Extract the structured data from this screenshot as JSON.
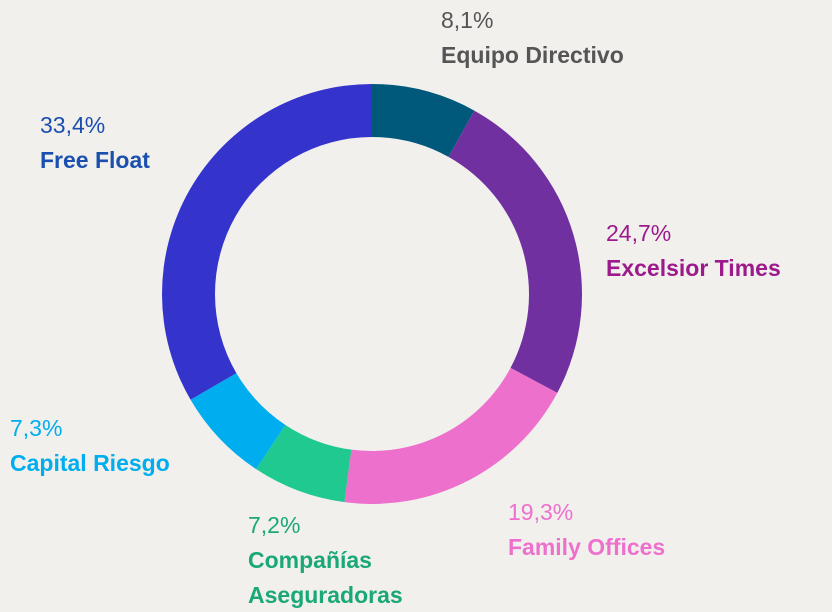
{
  "chart_data": {
    "type": "donut",
    "categories": [
      "Equipo Directivo",
      "Excelsior Times",
      "Family Offices",
      "Compañías Aseguradoras",
      "Capital Riesgo",
      "Free Float"
    ],
    "values": [
      8.1,
      24.7,
      19.3,
      7.2,
      7.3,
      33.4
    ],
    "value_labels": [
      "8,1%",
      "24,7%",
      "19,3%",
      "7,2%",
      "7,3%",
      "33,4%"
    ],
    "colors": [
      "#00597a",
      "#7030a0",
      "#ee70cd",
      "#1fc98f",
      "#00aeef",
      "#3434cd"
    ],
    "label_colors": [
      "#555555",
      "#9c1a8c",
      "#ee70cd",
      "#1aa877",
      "#00aeef",
      "#1a4fb0"
    ]
  }
}
